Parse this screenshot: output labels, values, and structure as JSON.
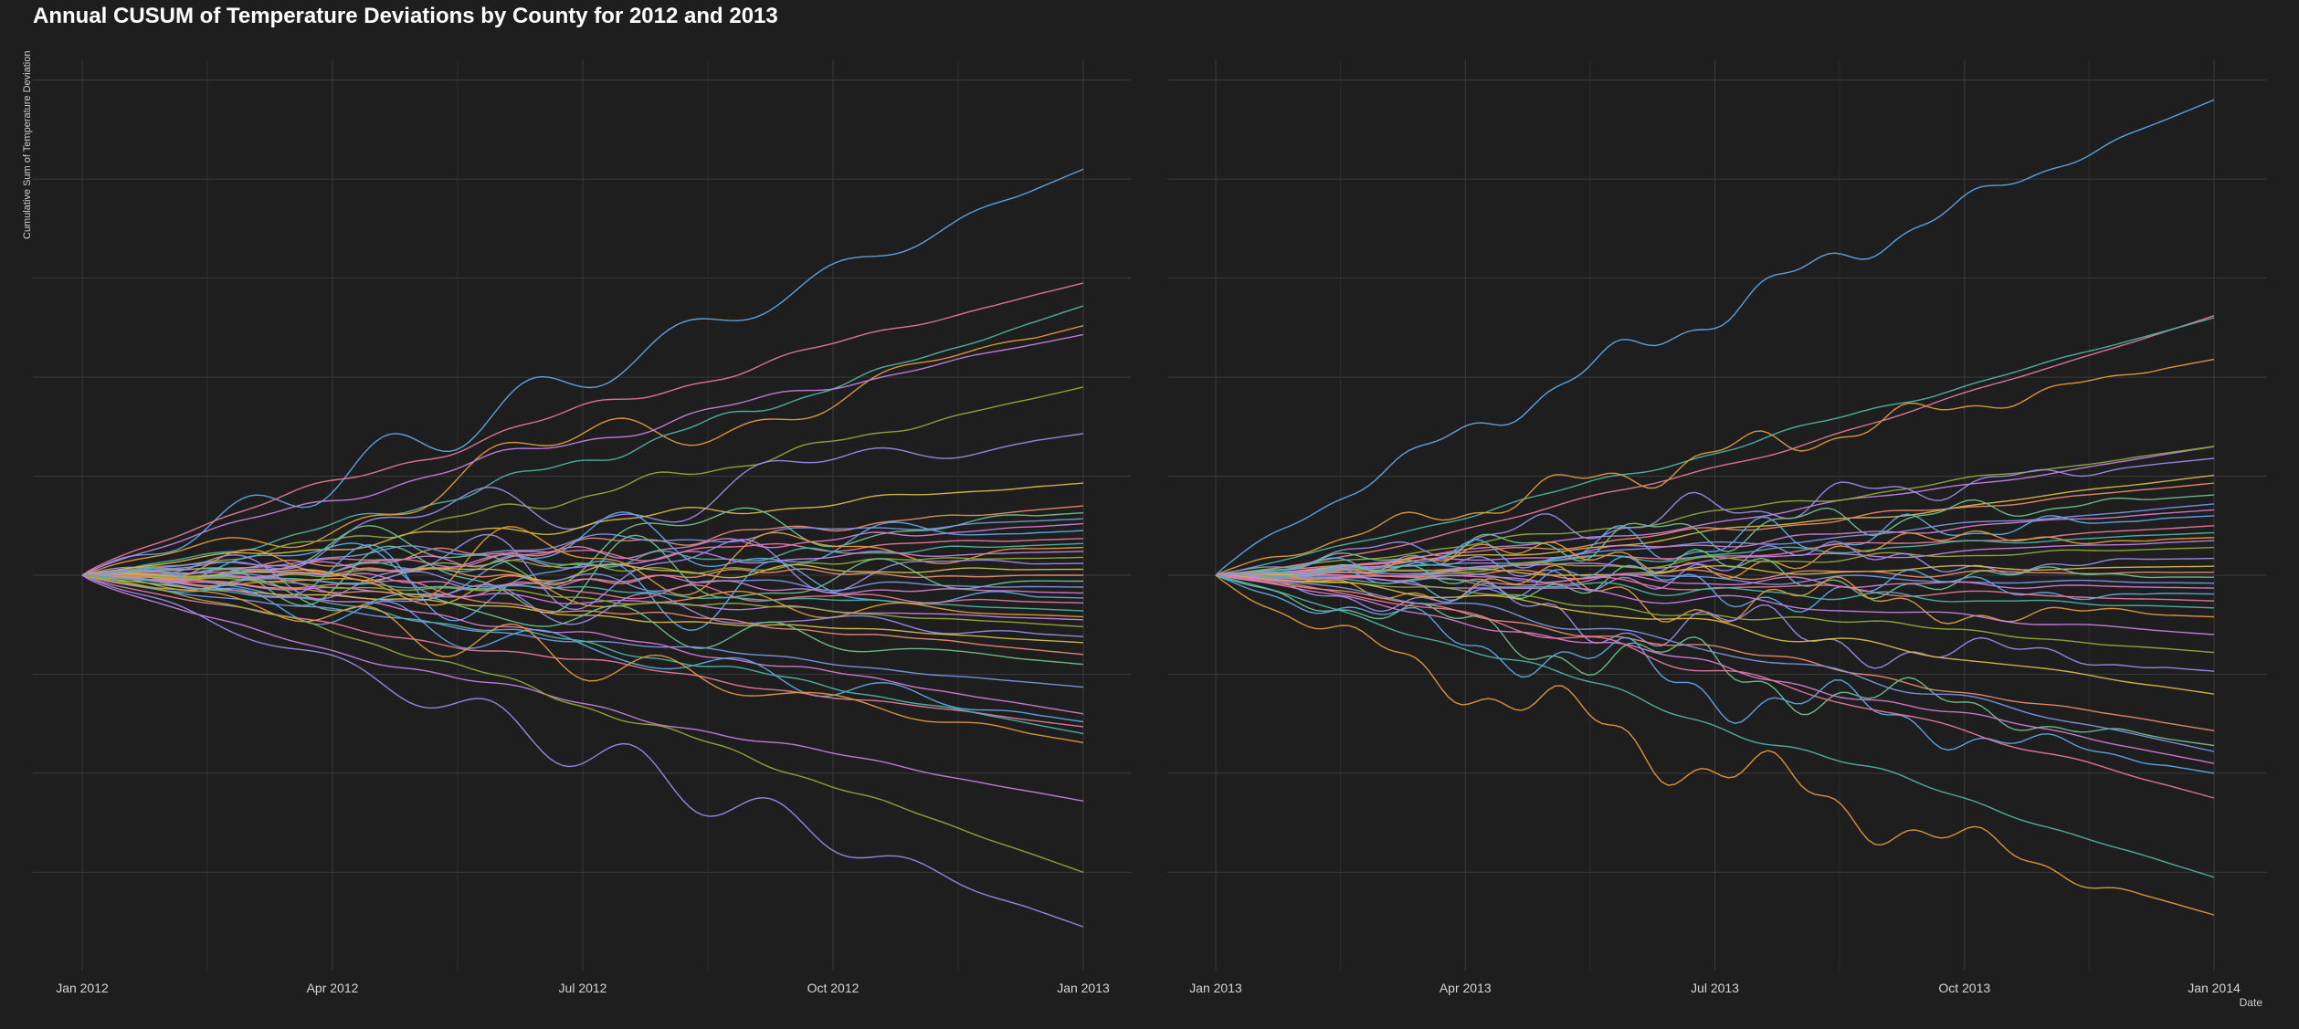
{
  "title": "Annual CUSUM of Temperature Deviations by County for 2012 and 2013",
  "colors": {
    "background": "#1e1e1e",
    "grid_major": "#3a3a3a",
    "grid_minor": "#2c2c2c",
    "palette": [
      "#5fa8e6",
      "#e5789a",
      "#4fb3a3",
      "#e09a3c",
      "#c47fe0",
      "#8faa3a",
      "#9b8ae6",
      "#d5b84c",
      "#e58b6e",
      "#6fc08a",
      "#7a96e0",
      "#d37ad0"
    ]
  },
  "chart_data": [
    {
      "type": "line",
      "panel": "2012",
      "title": "Annual CUSUM of Temperature Deviations by County for 2012 and 2013",
      "xlabel": "",
      "ylabel": "Cumulative Sum of Temperature Deviation",
      "x_ticks": [
        "Jan 2012",
        "Apr 2012",
        "Jul 2012",
        "Oct 2012",
        "Jan 2013"
      ],
      "x_range": [
        "2012-01-01",
        "2013-01-01"
      ],
      "y_ticks_labeled": false,
      "ylim": [
        -400,
        520
      ],
      "grid": true,
      "legend": "none",
      "series_end_values": [
        410,
        295,
        272,
        252,
        243,
        190,
        143,
        93,
        70,
        63,
        57,
        52,
        45,
        37,
        32,
        28,
        24,
        18,
        12,
        6,
        0,
        -6,
        -12,
        -18,
        -23,
        -28,
        -36,
        -42,
        -45,
        -52,
        -62,
        -68,
        -80,
        -90,
        -113,
        -140,
        -148,
        -153,
        -160,
        -169,
        -228,
        -300,
        -355
      ],
      "wavy_series_count": 12
    },
    {
      "type": "line",
      "panel": "2013",
      "title": "Annual CUSUM of Temperature Deviations by County for 2012 and 2013",
      "xlabel": "Date",
      "ylabel": "Cumulative Sum of Temperature Deviation",
      "x_ticks": [
        "Jan 2013",
        "Apr 2013",
        "Jul 2013",
        "Oct 2013",
        "Jan 2014"
      ],
      "x_range": [
        "2013-01-01",
        "2014-01-01"
      ],
      "y_ticks_labeled": false,
      "ylim": [
        -400,
        520
      ],
      "grid": true,
      "legend": "none",
      "series_end_values": [
        480,
        262,
        260,
        218,
        130,
        130,
        118,
        101,
        93,
        81,
        72,
        66,
        60,
        50,
        43,
        38,
        35,
        28,
        17,
        9,
        3,
        -2,
        -8,
        -13,
        -19,
        -26,
        -33,
        -42,
        -60,
        -78,
        -97,
        -120,
        -157,
        -172,
        -178,
        -190,
        -200,
        -225,
        -305,
        -343
      ],
      "wavy_series_count": 12
    }
  ]
}
